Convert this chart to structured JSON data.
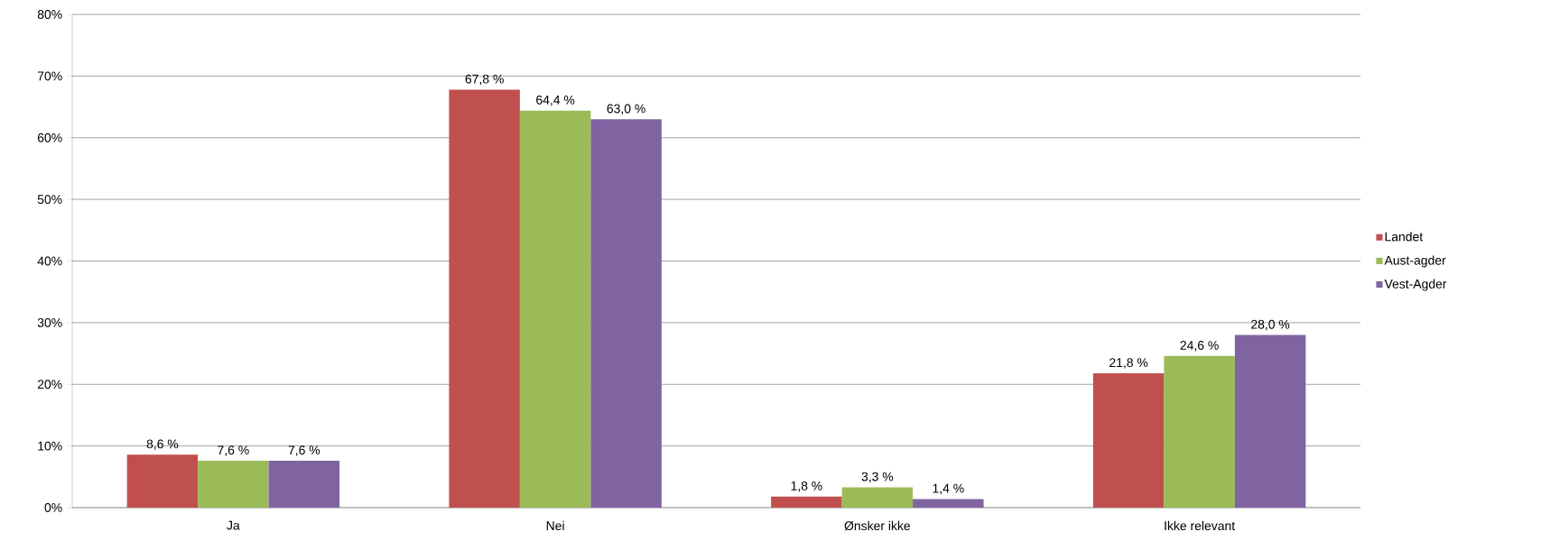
{
  "chart_data": {
    "type": "bar",
    "categories": [
      "Ja",
      "Nei",
      "Ønsker ikke",
      "Ikke relevant"
    ],
    "series": [
      {
        "name": "Landet",
        "color": "#c0504d",
        "values": [
          8.6,
          67.8,
          1.8,
          21.8
        ],
        "value_labels": [
          "8,6 %",
          "67,8 %",
          "1,8 %",
          "21,8 %"
        ]
      },
      {
        "name": "Aust-agder",
        "color": "#9bbb59",
        "values": [
          7.6,
          64.4,
          3.3,
          24.6
        ],
        "value_labels": [
          "7,6 %",
          "64,4 %",
          "3,3 %",
          "24,6 %"
        ]
      },
      {
        "name": "Vest-Agder",
        "color": "#8064a2",
        "values": [
          7.6,
          63.0,
          1.4,
          28.0
        ],
        "value_labels": [
          "7,6 %",
          "63,0 %",
          "1,4 %",
          "28,0 %"
        ]
      }
    ],
    "ylim": [
      0,
      80
    ],
    "yticks": [
      {
        "value": 0,
        "label": "0%"
      },
      {
        "value": 10,
        "label": "10%"
      },
      {
        "value": 20,
        "label": "20%"
      },
      {
        "value": 30,
        "label": "30%"
      },
      {
        "value": 40,
        "label": "40%"
      },
      {
        "value": 50,
        "label": "50%"
      },
      {
        "value": 60,
        "label": "60%"
      },
      {
        "value": 70,
        "label": "70%"
      },
      {
        "value": 80,
        "label": "80%"
      }
    ],
    "grid": "y",
    "legend": "right"
  }
}
